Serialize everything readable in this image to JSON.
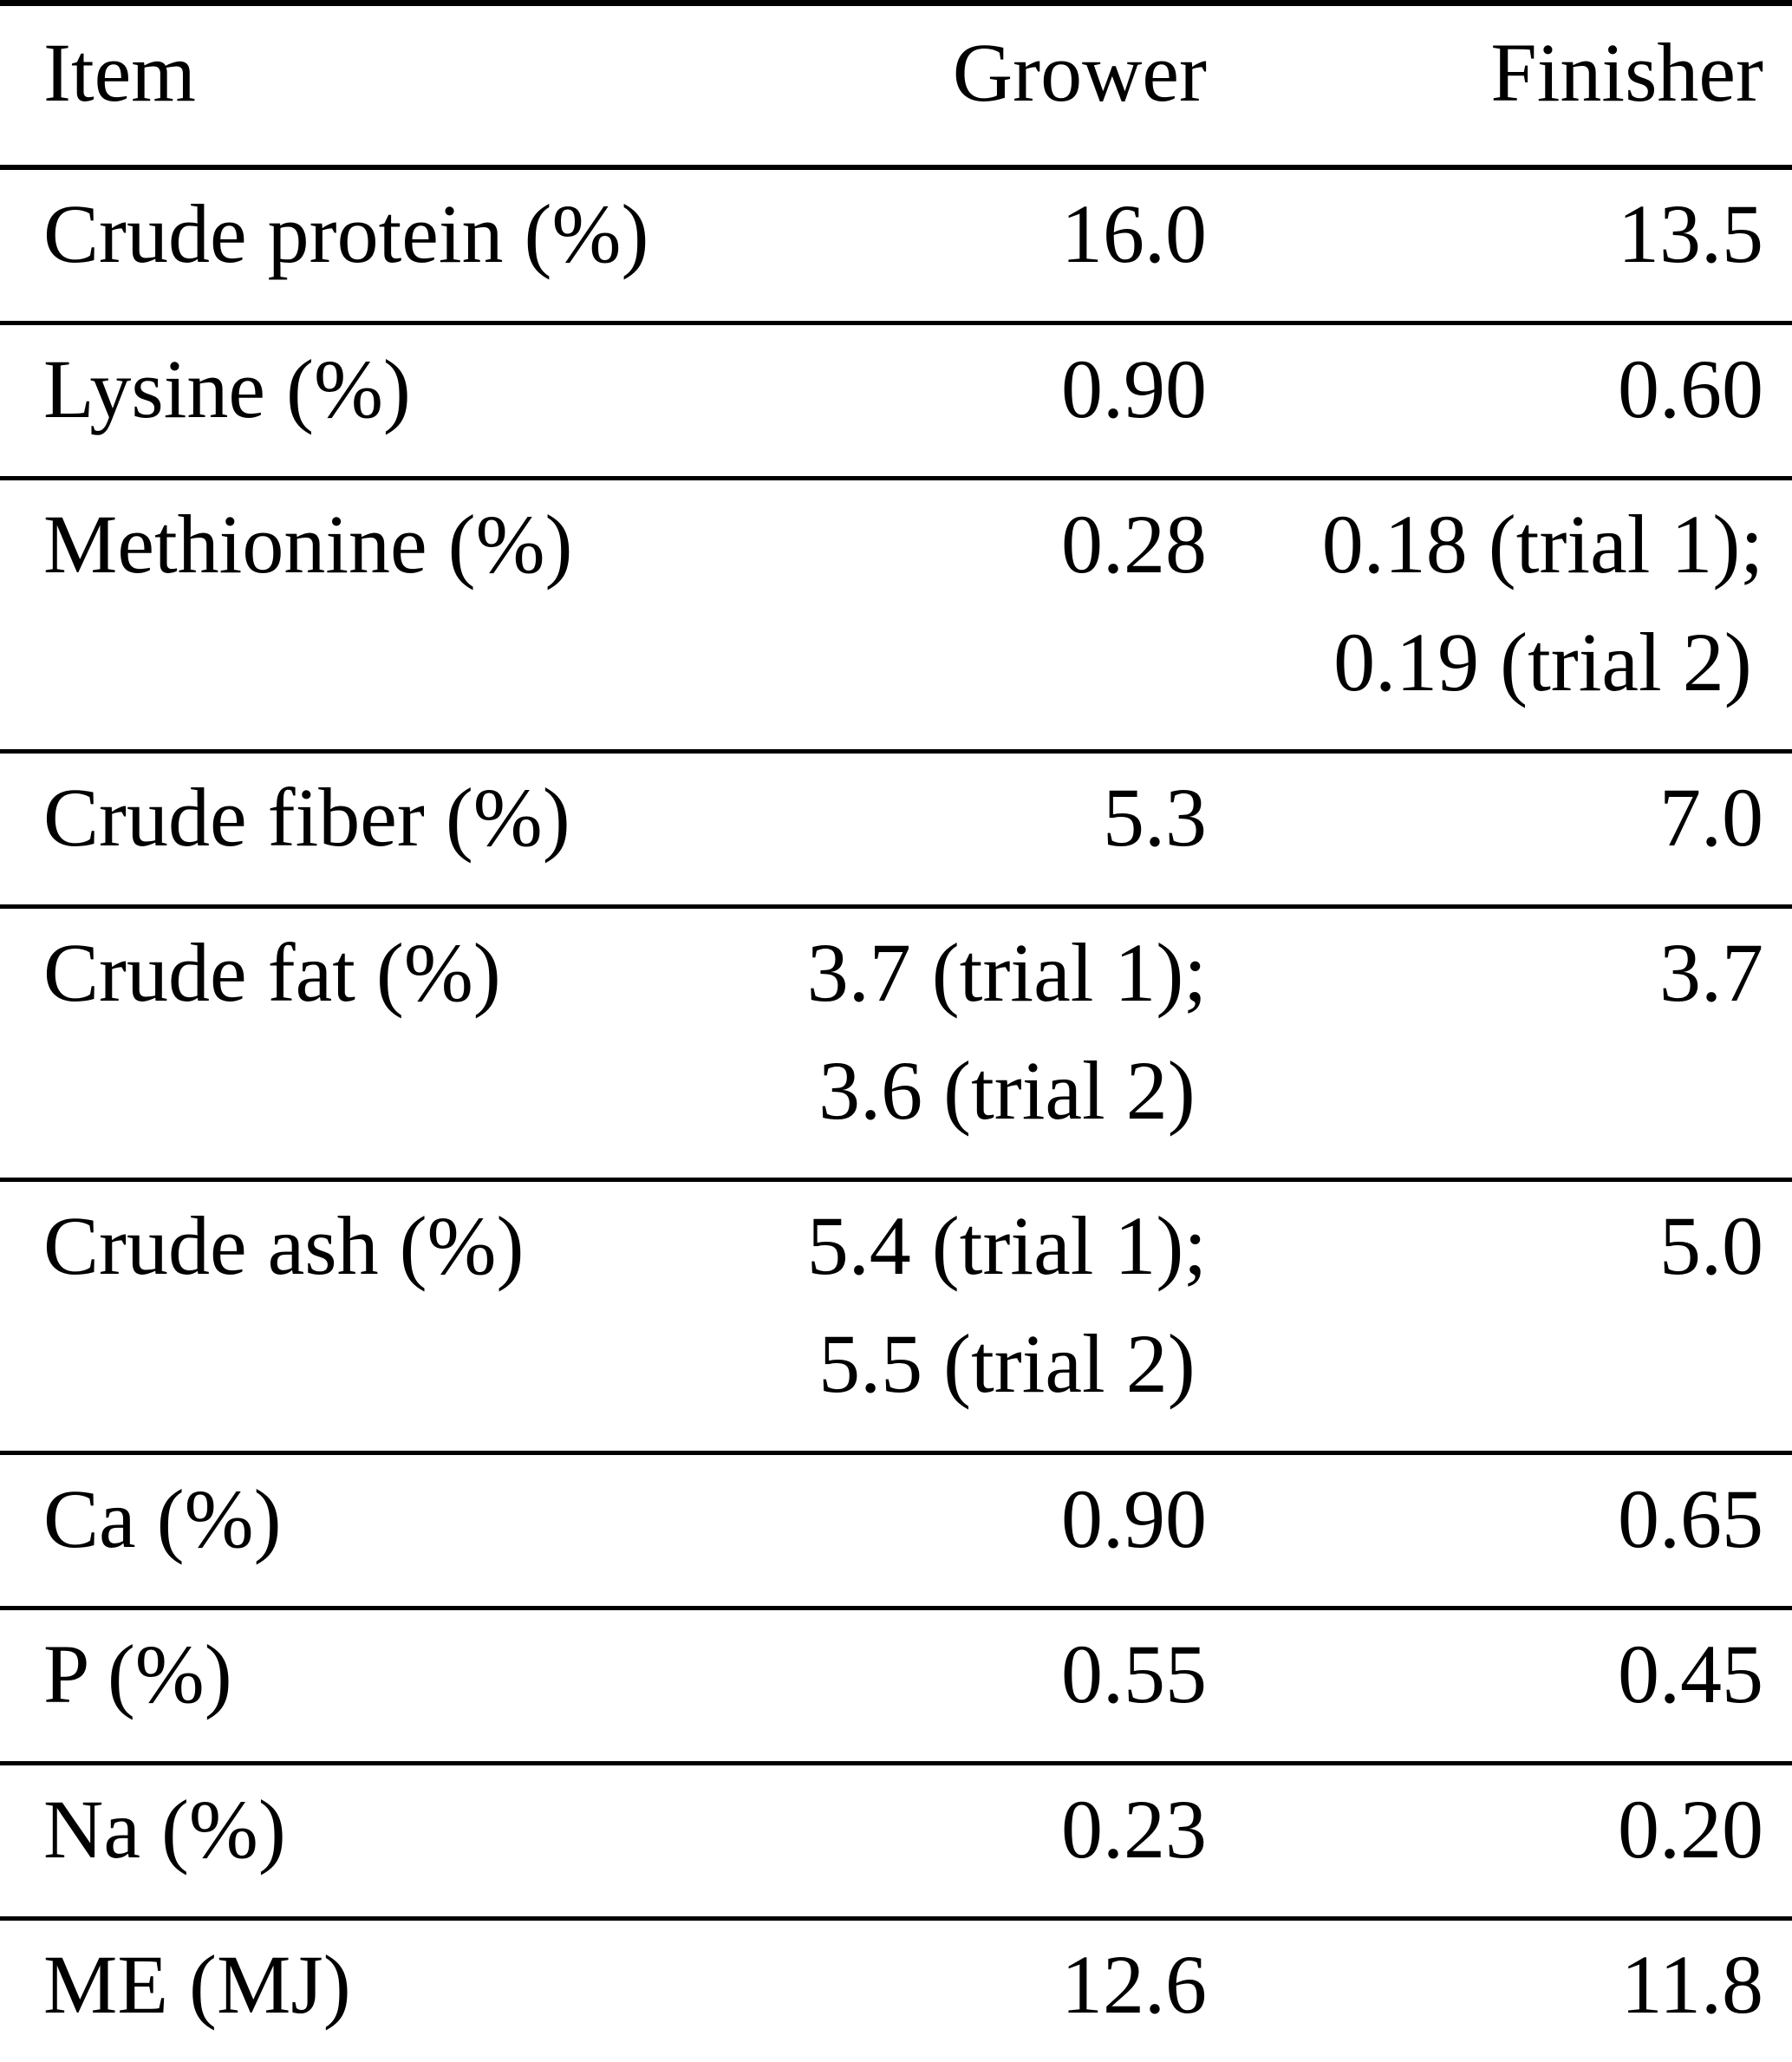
{
  "colors": {
    "background": "#ffffff",
    "text": "#000000",
    "rule": "#000000"
  },
  "table": {
    "columns": [
      {
        "key": "item",
        "label": "Item",
        "align": "left"
      },
      {
        "key": "grower",
        "label": "Grower",
        "align": "right"
      },
      {
        "key": "finisher",
        "label": "Finisher",
        "align": "right"
      }
    ],
    "rows": [
      {
        "item": "Crude protein (%)",
        "grower": [
          "16.0"
        ],
        "finisher": [
          "13.5"
        ]
      },
      {
        "item": "Lysine (%)",
        "grower": [
          "0.90"
        ],
        "finisher": [
          "0.60"
        ]
      },
      {
        "item": "Methionine (%)",
        "grower": [
          "0.28"
        ],
        "finisher": [
          "0.18 (trial 1);",
          "0.19 (trial 2)"
        ]
      },
      {
        "item": "Crude fiber (%)",
        "grower": [
          "5.3"
        ],
        "finisher": [
          "7.0"
        ]
      },
      {
        "item": "Crude fat (%)",
        "grower": [
          "3.7 (trial 1);",
          "3.6 (trial 2)"
        ],
        "finisher": [
          "3.7"
        ]
      },
      {
        "item": "Crude ash (%)",
        "grower": [
          "5.4 (trial 1);",
          "5.5 (trial 2)"
        ],
        "finisher": [
          "5.0"
        ]
      },
      {
        "item": "Ca (%)",
        "grower": [
          "0.90"
        ],
        "finisher": [
          "0.65"
        ]
      },
      {
        "item": "P (%)",
        "grower": [
          "0.55"
        ],
        "finisher": [
          "0.45"
        ]
      },
      {
        "item": "Na (%)",
        "grower": [
          "0.23"
        ],
        "finisher": [
          "0.20"
        ]
      },
      {
        "item": "ME (MJ)",
        "grower": [
          "12.6"
        ],
        "finisher": [
          "11.8"
        ]
      }
    ]
  }
}
